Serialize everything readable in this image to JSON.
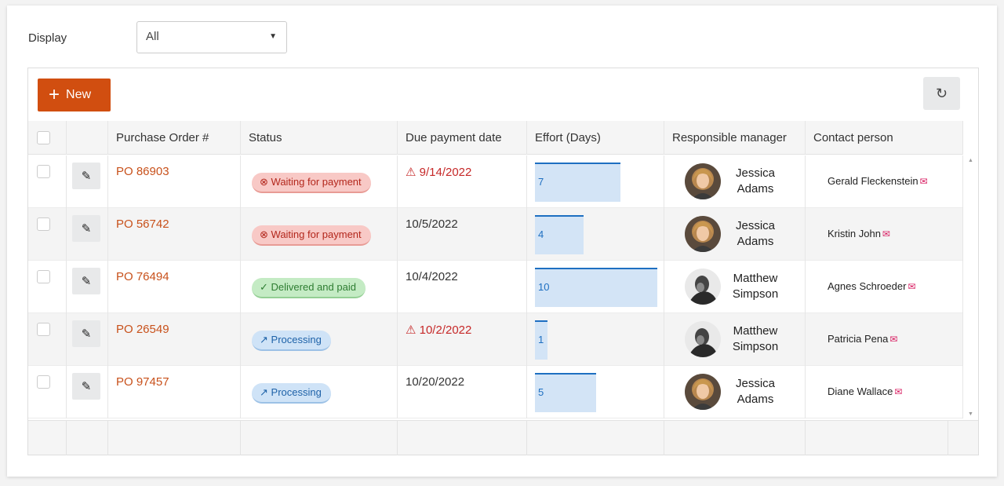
{
  "filter": {
    "label": "Display",
    "selected": "All"
  },
  "toolbar": {
    "new_label": "New",
    "refresh_icon": "refresh-icon"
  },
  "columns": [
    "Purchase Order #",
    "Status",
    "Due payment date",
    "Effort (Days)",
    "Responsible manager",
    "Contact person"
  ],
  "rows": [
    {
      "po": "PO 86903",
      "status": "Waiting for payment",
      "status_type": "waiting",
      "status_icon": "⊗",
      "due": "9/14/2022",
      "overdue": true,
      "effort": 7,
      "manager_first": "Jessica",
      "manager_last": "Adams",
      "avatar": "jessica",
      "contact": "Gerald Fleckenstein"
    },
    {
      "po": "PO 56742",
      "status": "Waiting for payment",
      "status_type": "waiting",
      "status_icon": "⊗",
      "due": "10/5/2022",
      "overdue": false,
      "effort": 4,
      "manager_first": "Jessica",
      "manager_last": "Adams",
      "avatar": "jessica",
      "contact": "Kristin John"
    },
    {
      "po": "PO 76494",
      "status": "Delivered and paid",
      "status_type": "delivered",
      "status_icon": "✓",
      "due": "10/4/2022",
      "overdue": false,
      "effort": 10,
      "manager_first": "Matthew",
      "manager_last": "Simpson",
      "avatar": "matthew",
      "contact": "Agnes Schroeder"
    },
    {
      "po": "PO 26549",
      "status": "Processing",
      "status_type": "processing",
      "status_icon": "↗",
      "due": "10/2/2022",
      "overdue": true,
      "effort": 1,
      "manager_first": "Matthew",
      "manager_last": "Simpson",
      "avatar": "matthew",
      "contact": "Patricia Pena"
    },
    {
      "po": "PO 97457",
      "status": "Processing",
      "status_type": "processing",
      "status_icon": "↗",
      "due": "10/20/2022",
      "overdue": false,
      "effort": 5,
      "manager_first": "Jessica",
      "manager_last": "Adams",
      "avatar": "jessica",
      "contact": "Diane Wallace"
    }
  ],
  "effort_max": 10,
  "colors": {
    "accent": "#d14e10",
    "po_link": "#c8511b",
    "overdue": "#c62828",
    "effort_bar": "#d3e4f6"
  }
}
